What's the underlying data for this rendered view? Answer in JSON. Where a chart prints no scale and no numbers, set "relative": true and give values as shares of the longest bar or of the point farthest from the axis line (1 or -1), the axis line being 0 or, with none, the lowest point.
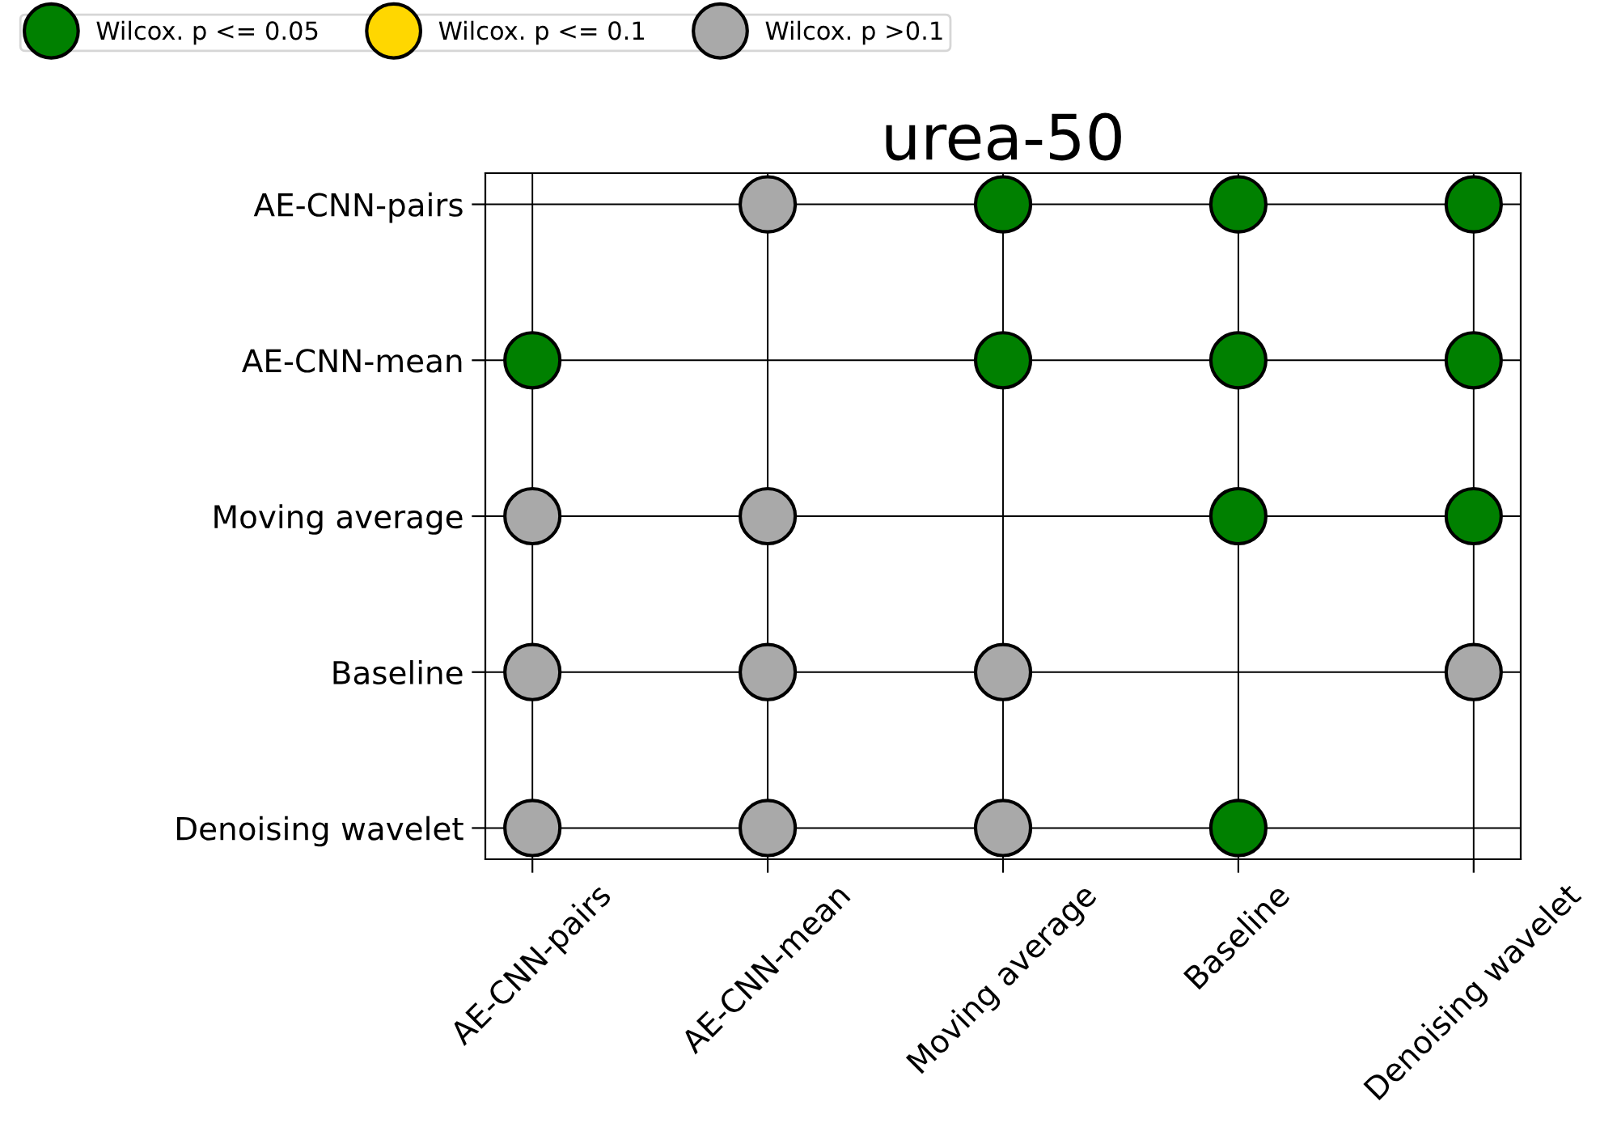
{
  "chart_data": {
    "type": "scatter",
    "title": "urea-50",
    "relative": true,
    "categories": [
      "AE-CNN-pairs",
      "AE-CNN-mean",
      "Moving average",
      "Baseline",
      "Denoising wavelet"
    ],
    "y_categories": [
      "AE-CNN-pairs",
      "AE-CNN-mean",
      "Moving average",
      "Baseline",
      "Denoising wavelet"
    ],
    "series": [
      {
        "name": "Wilcox. p <= 0.05",
        "color": "#008000",
        "x": [
          "Moving average",
          "Baseline",
          "Denoising wavelet",
          "AE-CNN-pairs",
          "Moving average",
          "Baseline",
          "Denoising wavelet",
          "Baseline",
          "Denoising wavelet",
          "Baseline"
        ],
        "values": [
          1,
          1,
          1,
          0.75,
          0.75,
          0.75,
          0.75,
          0.5,
          0.5,
          0
        ]
      },
      {
        "name": "Wilcox. p <= 0.1",
        "color": "#ffd700",
        "values": [
          null,
          null,
          null,
          null,
          null
        ]
      },
      {
        "name": "Wilcox. p >0.1",
        "color": "#a9a9a9",
        "x": [
          "AE-CNN-mean",
          "AE-CNN-pairs",
          "AE-CNN-mean",
          "AE-CNN-pairs",
          "AE-CNN-mean",
          "Moving average",
          "Denoising wavelet",
          "AE-CNN-pairs",
          "AE-CNN-mean",
          "Moving average"
        ],
        "values": [
          1,
          0.5,
          0.5,
          0.25,
          0.25,
          0.25,
          0.25,
          0,
          0,
          0
        ]
      }
    ],
    "grid": true,
    "legend": "top",
    "marker": "circle"
  }
}
